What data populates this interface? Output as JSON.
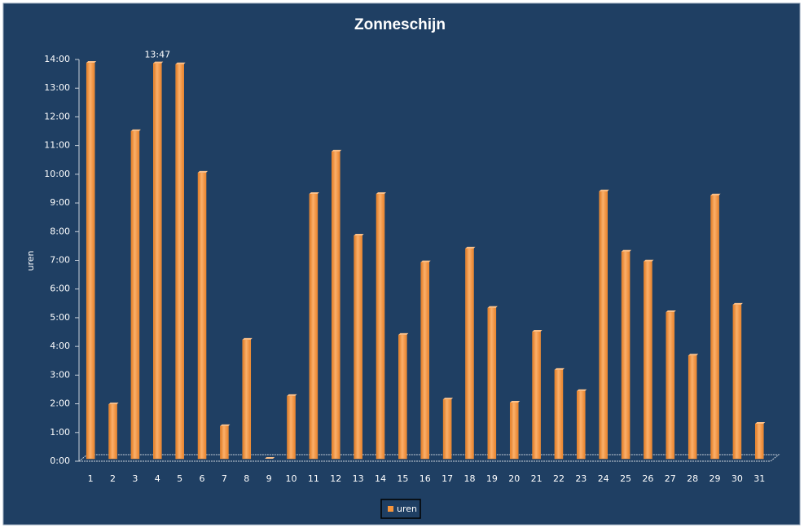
{
  "chart_data": {
    "type": "bar",
    "title": "Zonneschijn",
    "y_label": "uren",
    "categories": [
      "1",
      "2",
      "3",
      "4",
      "5",
      "6",
      "7",
      "8",
      "9",
      "10",
      "11",
      "12",
      "13",
      "14",
      "15",
      "16",
      "17",
      "18",
      "19",
      "20",
      "21",
      "22",
      "23",
      "24",
      "25",
      "26",
      "27",
      "28",
      "29",
      "30",
      "31"
    ],
    "series": [
      {
        "name": "uren",
        "color": "#f7953b",
        "values": [
          13.8,
          1.9,
          11.42,
          13.783,
          13.75,
          9.97,
          1.14,
          4.15,
          0,
          2.19,
          9.23,
          10.71,
          7.78,
          9.23,
          4.32,
          6.85,
          2.07,
          7.33,
          5.26,
          1.96,
          4.43,
          3.1,
          2.36,
          9.32,
          7.22,
          6.88,
          5.11,
          3.6,
          9.18,
          5.37,
          1.22
        ],
        "value_labels": [
          null,
          null,
          null,
          "13:47",
          null,
          null,
          null,
          null,
          null,
          null,
          null,
          null,
          null,
          null,
          null,
          null,
          null,
          null,
          null,
          null,
          null,
          null,
          null,
          null,
          null,
          null,
          null,
          null,
          null,
          null,
          null
        ]
      }
    ],
    "ylim": [
      0,
      14
    ],
    "yticks": [
      {
        "value": 0,
        "label": "0:00"
      },
      {
        "value": 1,
        "label": "1:00"
      },
      {
        "value": 2,
        "label": "2:00"
      },
      {
        "value": 3,
        "label": "3:00"
      },
      {
        "value": 4,
        "label": "4:00"
      },
      {
        "value": 5,
        "label": "5:00"
      },
      {
        "value": 6,
        "label": "6:00"
      },
      {
        "value": 7,
        "label": "7:00"
      },
      {
        "value": 8,
        "label": "8:00"
      },
      {
        "value": 9,
        "label": "9:00"
      },
      {
        "value": 10,
        "label": "10:00"
      },
      {
        "value": 11,
        "label": "11:00"
      },
      {
        "value": 12,
        "label": "12:00"
      },
      {
        "value": 13,
        "label": "13:00"
      },
      {
        "value": 14,
        "label": "14:00"
      }
    ],
    "grid": false,
    "legend": "bottom"
  }
}
